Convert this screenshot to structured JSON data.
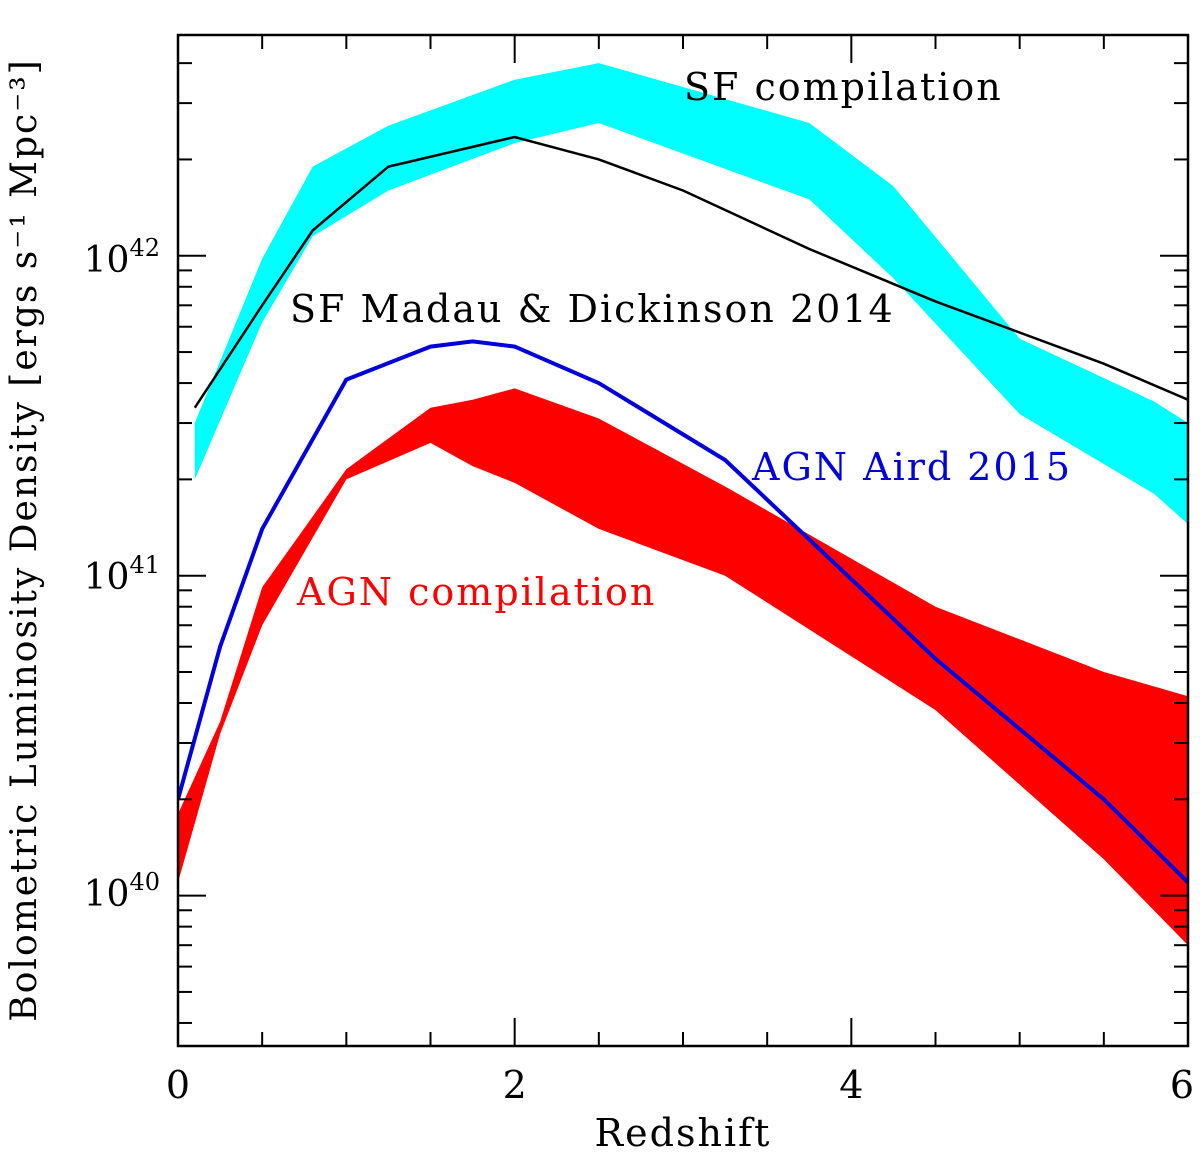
{
  "chart_data": {
    "type": "area",
    "xlabel": "Redshift",
    "ylabel": "Bolometric Luminosity Density [ergs s⁻¹ Mpc⁻³]",
    "xlim": [
      0,
      6
    ],
    "ylim_log10": [
      39.53,
      42.69
    ],
    "yscale": "log",
    "x_ticks": [
      0,
      2,
      4,
      6
    ],
    "x_tick_labels": [
      "0",
      "2",
      "4",
      "6"
    ],
    "y_ticks": [
      {
        "value": 40,
        "base": "10",
        "exp": "40"
      },
      {
        "value": 41,
        "base": "10",
        "exp": "41"
      },
      {
        "value": 42,
        "base": "10",
        "exp": "42"
      }
    ],
    "bands": [
      {
        "name": "SF compilation",
        "color": "#00ffff",
        "x": [
          0.1,
          0.5,
          0.8,
          1.25,
          2.0,
          2.5,
          3.75,
          4.25,
          5.0,
          5.8,
          6.0
        ],
        "upper": [
          3e+41,
          9.8e+41,
          1.9e+42,
          2.55e+42,
          3.55e+42,
          4e+42,
          2.6e+42,
          1.65e+42,
          5.5e+41,
          3.5e+41,
          3e+41
        ],
        "lower": [
          2e+41,
          6.2e+41,
          1.15e+42,
          1.6e+42,
          2.25e+42,
          2.6e+42,
          1.5e+42,
          8.5e+41,
          3.2e+41,
          1.8e+41,
          1.45e+41
        ]
      },
      {
        "name": "AGN compilation",
        "color": "#ff0000",
        "x": [
          0.0,
          0.25,
          0.5,
          1.0,
          1.5,
          1.75,
          2.0,
          2.5,
          3.25,
          4.5,
          5.5,
          6.0
        ],
        "upper": [
          1.8e+40,
          3.5e+40,
          9.2e+40,
          2.15e+41,
          3.35e+41,
          3.55e+41,
          3.85e+41,
          3.1e+41,
          1.9e+41,
          8e+40,
          5e+40,
          4.2e+40
        ],
        "lower": [
          1.1e+40,
          3.2e+40,
          7e+40,
          2e+41,
          2.6e+41,
          2.2e+41,
          1.95e+41,
          1.4e+41,
          1e+41,
          3.8e+40,
          1.3e+40,
          7e+39
        ]
      }
    ],
    "lines": [
      {
        "name": "SF Madau & Dickinson 2014",
        "color": "#000000",
        "x": [
          0.1,
          0.5,
          0.8,
          1.25,
          2.0,
          2.5,
          3.0,
          3.75,
          4.5,
          5.5,
          6.0
        ],
        "y": [
          3.35e+41,
          7e+41,
          1.2e+42,
          1.9e+42,
          2.35e+42,
          2e+42,
          1.6e+42,
          1.05e+42,
          7.2e+41,
          4.6e+41,
          3.55e+41
        ]
      },
      {
        "name": "AGN Aird 2015",
        "color": "#0000dd",
        "x": [
          0.0,
          0.25,
          0.5,
          1.0,
          1.5,
          1.75,
          2.0,
          2.5,
          3.25,
          4.5,
          5.5,
          6.0
        ],
        "y": [
          2e+40,
          6e+40,
          1.4e+41,
          4.1e+41,
          5.2e+41,
          5.4e+41,
          5.2e+41,
          4e+41,
          2.3e+41,
          5.5e+40,
          2e+40,
          1.1e+40
        ]
      }
    ],
    "annotations": [
      {
        "text": "SF compilation",
        "color": "#000000"
      },
      {
        "text": "SF Madau & Dickinson 2014",
        "color": "#000000"
      },
      {
        "text": "AGN Aird 2015",
        "color": "#0000dd"
      },
      {
        "text": "AGN compilation",
        "color": "#ff0000"
      }
    ]
  }
}
